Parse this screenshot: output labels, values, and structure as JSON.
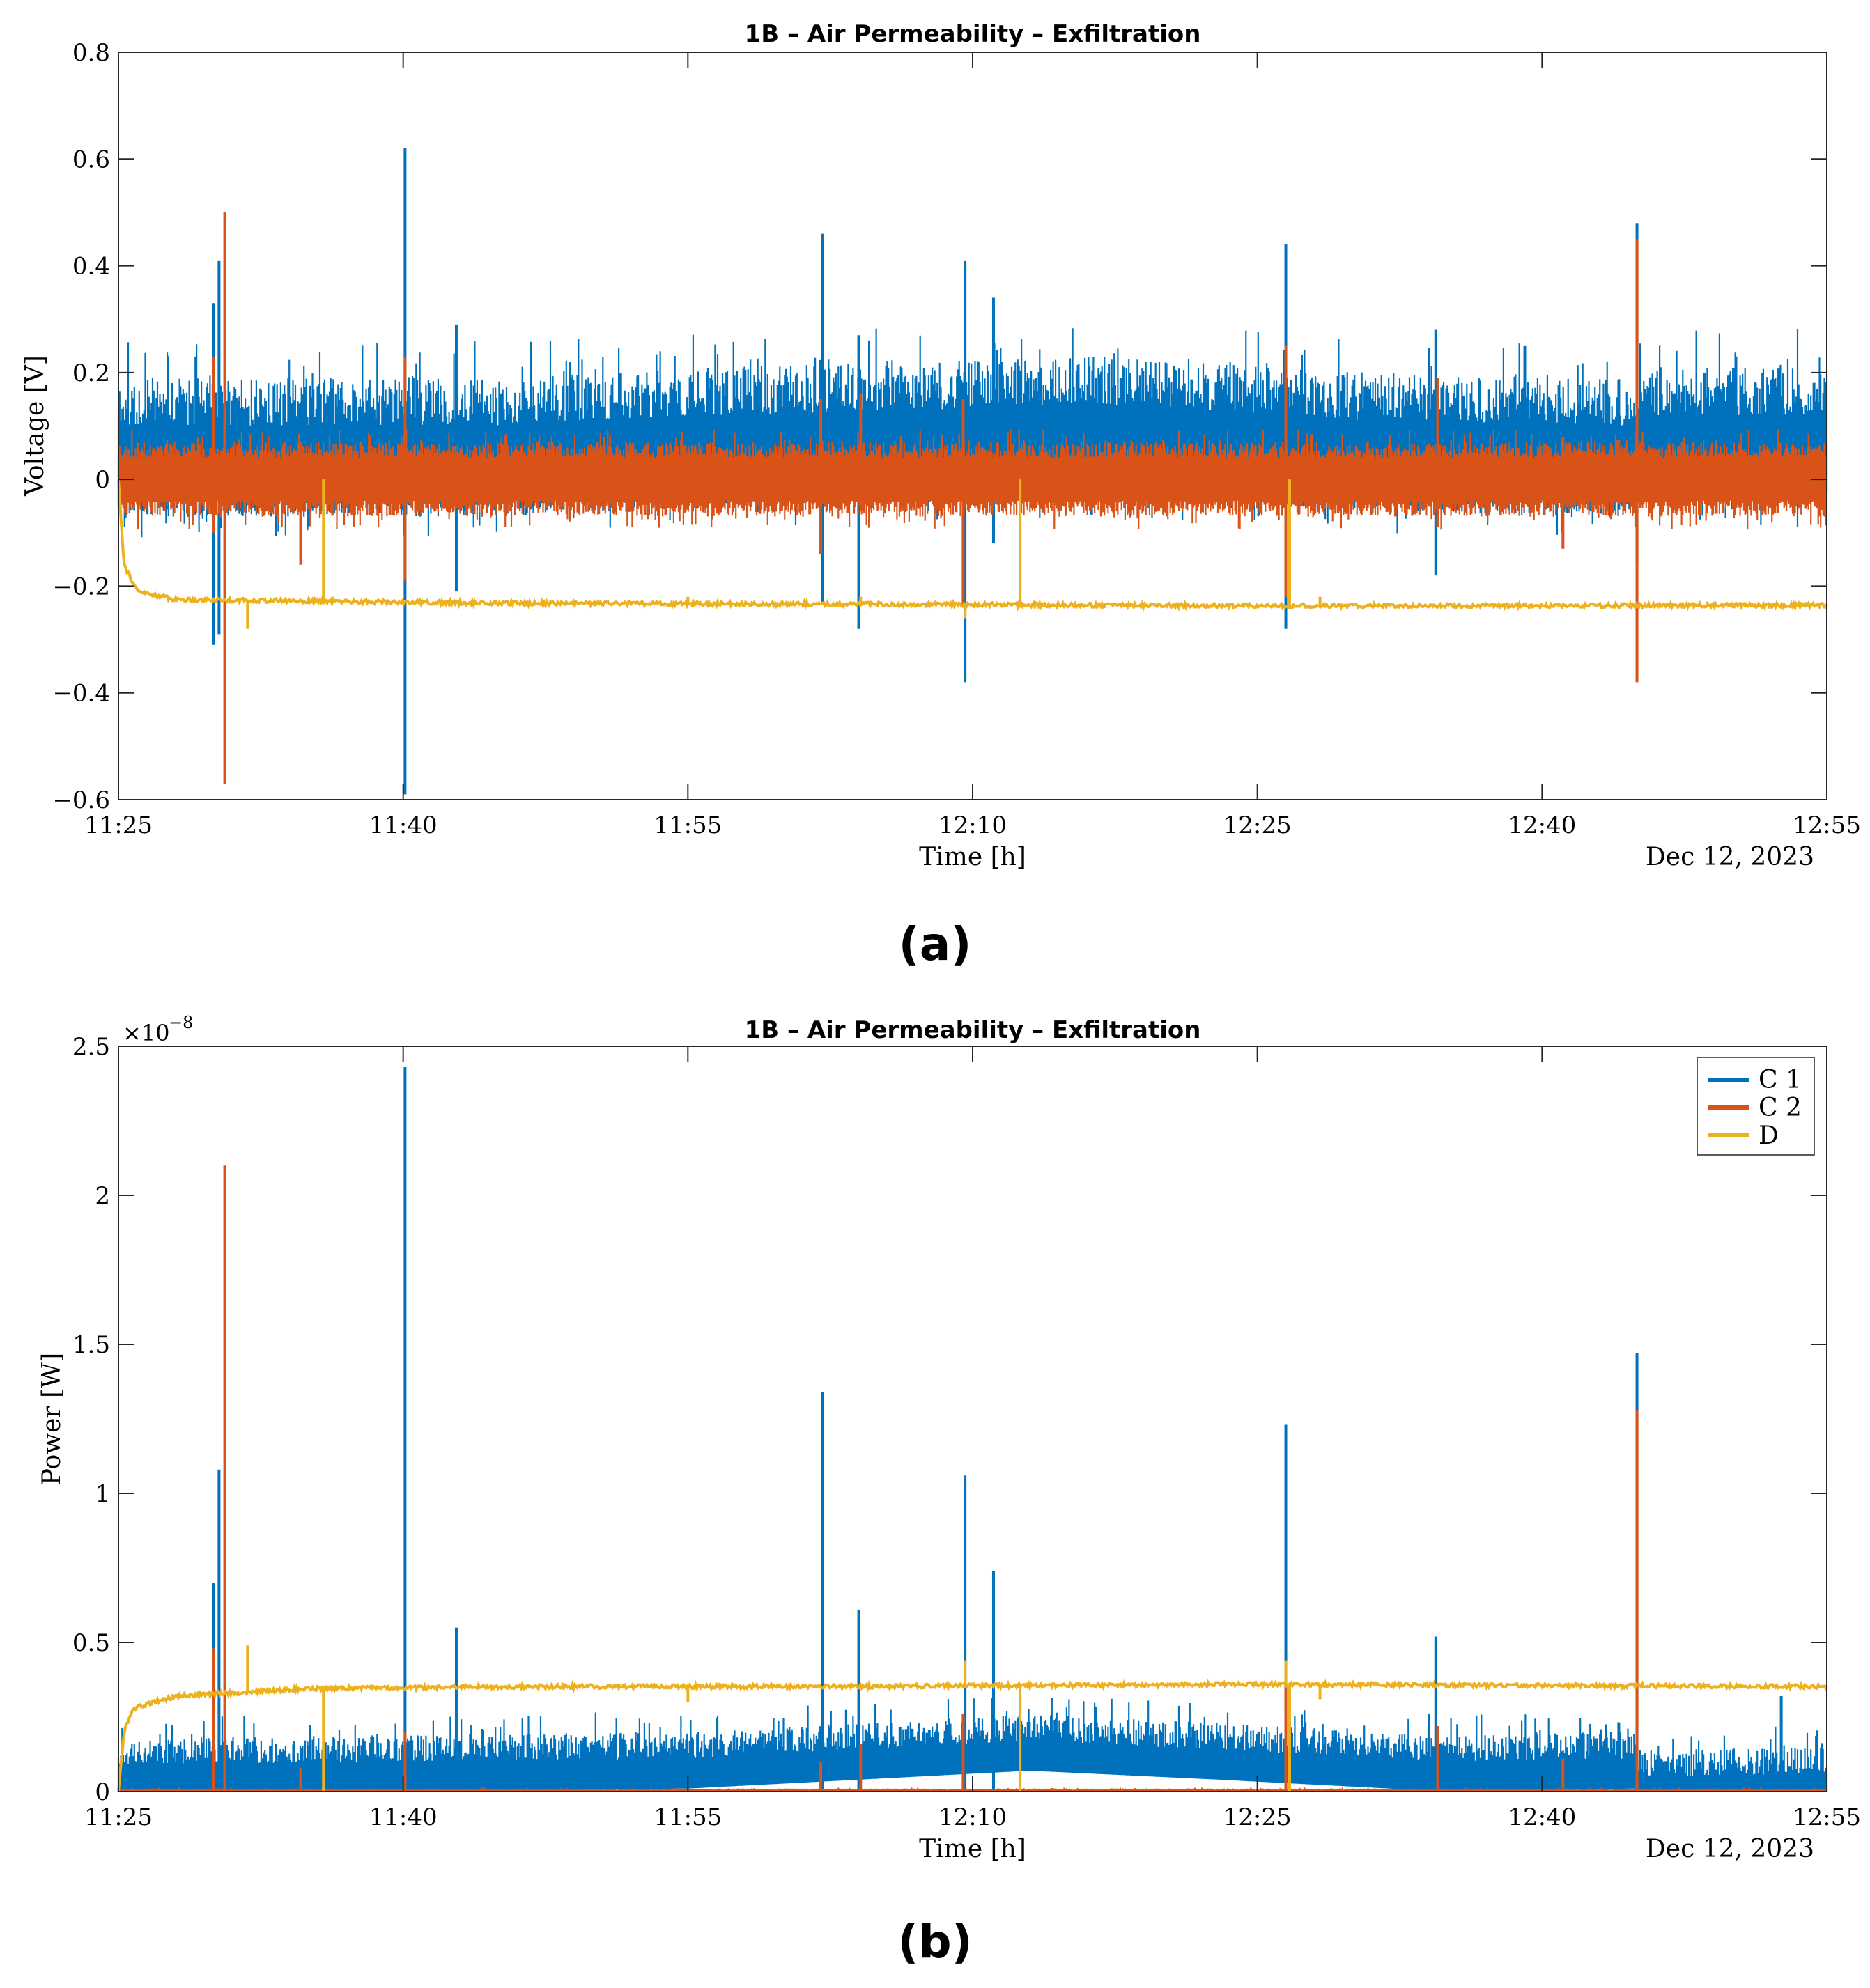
{
  "figure": {
    "panel_a_label": "(a)",
    "panel_b_label": "(b)"
  },
  "chart_data": [
    {
      "type": "line",
      "id": "voltage",
      "title": "1B – Air Permeability – Exfiltration",
      "xlabel": "Time [h]",
      "ylabel": "Voltage [V]",
      "date_label": "Dec 12, 2023",
      "xlim_minutes": [
        0,
        90
      ],
      "x_ticks": [
        {
          "value": 0,
          "label": "11:25"
        },
        {
          "value": 15,
          "label": "11:40"
        },
        {
          "value": 30,
          "label": "11:55"
        },
        {
          "value": 45,
          "label": "12:10"
        },
        {
          "value": 60,
          "label": "12:25"
        },
        {
          "value": 75,
          "label": "12:40"
        },
        {
          "value": 90,
          "label": "12:55"
        }
      ],
      "ylim": [
        -0.6,
        0.8
      ],
      "y_ticks": [
        {
          "value": -0.6,
          "label": "−0.6"
        },
        {
          "value": -0.4,
          "label": "−0.4"
        },
        {
          "value": -0.2,
          "label": "−0.2"
        },
        {
          "value": 0,
          "label": "0"
        },
        {
          "value": 0.2,
          "label": "0.2"
        },
        {
          "value": 0.4,
          "label": "0.4"
        },
        {
          "value": 0.6,
          "label": "0.6"
        },
        {
          "value": 0.8,
          "label": "0.8"
        }
      ],
      "grid": false,
      "legend": "none",
      "series": [
        {
          "name": "C 1",
          "color": "#0072BD",
          "noise": {
            "seed": 11,
            "center": 0.07,
            "upper_base": 0.1,
            "upper_amp": 0.09,
            "lower_base": -0.02,
            "lower_amp": 0.05
          },
          "envelope_center": [
            [
              0,
              0.07
            ],
            [
              20,
              0.07
            ],
            [
              32,
              0.09
            ],
            [
              52,
              0.11
            ],
            [
              66,
              0.08
            ],
            [
              80,
              0.07
            ],
            [
              80.1,
              0.09
            ],
            [
              90,
              0.09
            ]
          ],
          "spikes": [
            [
              5.0,
              0.33,
              -0.31
            ],
            [
              5.3,
              0.41,
              -0.29
            ],
            [
              15.1,
              0.62,
              -0.59
            ],
            [
              17.8,
              0.29,
              -0.21
            ],
            [
              37.1,
              0.46,
              -0.23
            ],
            [
              39.0,
              0.27,
              -0.28
            ],
            [
              44.6,
              0.41,
              -0.38
            ],
            [
              46.1,
              0.34,
              -0.12
            ],
            [
              61.5,
              0.44,
              -0.28
            ],
            [
              69.4,
              0.28,
              -0.18
            ],
            [
              80.0,
              0.48,
              -0.16
            ]
          ]
        },
        {
          "name": "C 2",
          "color": "#D95319",
          "noise": {
            "seed": 23,
            "center": 0.0,
            "upper_base": 0.04,
            "upper_amp": 0.03,
            "lower_base": -0.04,
            "lower_amp": 0.03
          },
          "envelope_center": [
            [
              0,
              0.0
            ],
            [
              90,
              0.0
            ]
          ],
          "spikes": [
            [
              5.0,
              0.23,
              -0.1
            ],
            [
              5.6,
              0.5,
              -0.57
            ],
            [
              9.6,
              0.07,
              -0.16
            ],
            [
              15.1,
              0.23,
              -0.19
            ],
            [
              37.0,
              0.15,
              -0.14
            ],
            [
              39.1,
              0.16,
              -0.05
            ],
            [
              44.5,
              0.15,
              -0.24
            ],
            [
              61.5,
              0.25,
              -0.22
            ],
            [
              69.5,
              0.19,
              -0.09
            ],
            [
              76.1,
              0.08,
              -0.13
            ],
            [
              80.0,
              0.45,
              -0.38
            ]
          ]
        },
        {
          "name": "D",
          "color": "#EDB120",
          "baseline": [
            [
              0,
              0.0
            ],
            [
              0.3,
              -0.16
            ],
            [
              1.0,
              -0.21
            ],
            [
              3,
              -0.225
            ],
            [
              20,
              -0.232
            ],
            [
              40,
              -0.234
            ],
            [
              60,
              -0.237
            ],
            [
              90,
              -0.236
            ]
          ],
          "jitter": 0.004,
          "steps": [
            [
              10.8,
              0.0
            ],
            [
              47.5,
              0.0
            ],
            [
              61.7,
              0.0
            ]
          ],
          "blips": [
            [
              6.8,
              -0.28
            ],
            [
              30.0,
              -0.22
            ],
            [
              39.1,
              -0.22
            ],
            [
              44.6,
              -0.26
            ],
            [
              63.3,
              -0.22
            ]
          ]
        }
      ]
    },
    {
      "type": "line",
      "id": "power",
      "title": "1B – Air Permeability – Exfiltration",
      "xlabel": "Time [h]",
      "ylabel": "Power [W]",
      "date_label": "Dec 12, 2023",
      "exponent_label": "×10",
      "exponent_power": "−8",
      "xlim_minutes": [
        0,
        90
      ],
      "x_ticks": [
        {
          "value": 0,
          "label": "11:25"
        },
        {
          "value": 15,
          "label": "11:40"
        },
        {
          "value": 30,
          "label": "11:55"
        },
        {
          "value": 45,
          "label": "12:10"
        },
        {
          "value": 60,
          "label": "12:25"
        },
        {
          "value": 75,
          "label": "12:40"
        },
        {
          "value": 90,
          "label": "12:55"
        }
      ],
      "ylim": [
        0,
        2.5
      ],
      "y_ticks": [
        {
          "value": 0,
          "label": "0"
        },
        {
          "value": 0.5,
          "label": "0.5"
        },
        {
          "value": 1,
          "label": "1"
        },
        {
          "value": 1.5,
          "label": "1.5"
        },
        {
          "value": 2,
          "label": "2"
        },
        {
          "value": 2.5,
          "label": "2.5"
        }
      ],
      "grid": false,
      "legend": "top-right",
      "series": [
        {
          "name": "C 1",
          "color": "#0072BD",
          "noise": {
            "seed": 37,
            "center": 0.08,
            "upper_base": 0.1,
            "upper_amp": 0.09,
            "lower_base": 0.0,
            "lower_amp": 0.0
          },
          "envelope_center": [
            [
              0,
              0.07
            ],
            [
              30,
              0.09
            ],
            [
              48,
              0.15
            ],
            [
              58,
              0.12
            ],
            [
              70,
              0.08
            ],
            [
              79.9,
              0.09
            ],
            [
              80.1,
              0.03
            ],
            [
              90,
              0.04
            ]
          ],
          "spikes": [
            [
              5.0,
              0.7,
              0
            ],
            [
              5.3,
              1.08,
              0
            ],
            [
              15.1,
              2.43,
              0
            ],
            [
              17.8,
              0.55,
              0
            ],
            [
              37.1,
              1.34,
              0
            ],
            [
              39.0,
              0.61,
              0
            ],
            [
              44.6,
              1.06,
              0
            ],
            [
              46.1,
              0.74,
              0
            ],
            [
              61.5,
              1.23,
              0
            ],
            [
              69.4,
              0.52,
              0
            ],
            [
              80.0,
              1.47,
              0
            ],
            [
              87.6,
              0.32,
              0
            ]
          ]
        },
        {
          "name": "C 2",
          "color": "#D95319",
          "noise": {
            "seed": 51,
            "center": 0.004,
            "upper_base": 0.006,
            "upper_amp": 0.004,
            "lower_base": 0.0,
            "lower_amp": 0.0
          },
          "envelope_center": [
            [
              0,
              0.004
            ],
            [
              90,
              0.004
            ]
          ],
          "spikes": [
            [
              5.0,
              0.48,
              0
            ],
            [
              5.6,
              2.1,
              0
            ],
            [
              9.6,
              0.08,
              0
            ],
            [
              15.1,
              0.2,
              0
            ],
            [
              37.0,
              0.1,
              0
            ],
            [
              39.1,
              0.16,
              0
            ],
            [
              44.5,
              0.26,
              0
            ],
            [
              61.5,
              0.35,
              0
            ],
            [
              69.5,
              0.22,
              0
            ],
            [
              76.1,
              0.11,
              0
            ],
            [
              80.0,
              1.28,
              0
            ]
          ]
        },
        {
          "name": "D",
          "color": "#EDB120",
          "baseline": [
            [
              0,
              0.0
            ],
            [
              0.3,
              0.2
            ],
            [
              0.8,
              0.28
            ],
            [
              3,
              0.32
            ],
            [
              10,
              0.345
            ],
            [
              20,
              0.352
            ],
            [
              40,
              0.353
            ],
            [
              60,
              0.36
            ],
            [
              90,
              0.352
            ]
          ],
          "jitter": 0.007,
          "steps": [
            [
              10.8,
              0.0
            ],
            [
              47.5,
              0.0
            ],
            [
              61.7,
              0.0
            ]
          ],
          "blips": [
            [
              6.8,
              0.49
            ],
            [
              44.6,
              0.44
            ],
            [
              61.5,
              0.44
            ],
            [
              63.3,
              0.31
            ],
            [
              30.0,
              0.3
            ]
          ]
        }
      ]
    }
  ]
}
